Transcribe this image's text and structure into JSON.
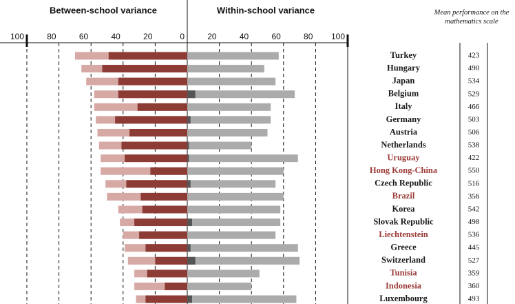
{
  "chart_data": {
    "type": "diverging-bar",
    "title_left": "Between-school variance",
    "title_right": "Within-school variance",
    "score_header": "Mean performance on the mathematics scale",
    "categories": [
      "Turkey",
      "Hungary",
      "Japan",
      "Belgium",
      "Italy",
      "Germany",
      "Austria",
      "Netherlands",
      "Uruguay",
      "Hong Kong-China",
      "Czech Republic",
      "Brazil",
      "Korea",
      "Slovak Republic",
      "Liechtenstein",
      "Greece",
      "Switzerland",
      "Tunisia",
      "Indonesia",
      "Luxembourg"
    ],
    "category_colors": [
      "#1a1a1a",
      "#1a1a1a",
      "#1a1a1a",
      "#1a1a1a",
      "#1a1a1a",
      "#1a1a1a",
      "#1a1a1a",
      "#1a1a1a",
      "#9b3b37",
      "#9b3b37",
      "#1a1a1a",
      "#9b3b37",
      "#1a1a1a",
      "#1a1a1a",
      "#9b3b37",
      "#1a1a1a",
      "#1a1a1a",
      "#9b3b37",
      "#9b3b37",
      "#1a1a1a"
    ],
    "scores": [
      423,
      490,
      534,
      529,
      466,
      503,
      506,
      538,
      422,
      550,
      516,
      356,
      542,
      498,
      536,
      445,
      527,
      359,
      360,
      493
    ],
    "series": [
      {
        "color": "#d6a9a5",
        "values": [
          -70,
          -66,
          -63,
          -58,
          -58,
          -57,
          -56,
          -55,
          -54,
          -54,
          -51,
          -50,
          -43,
          -42,
          -40,
          -39,
          -37,
          -33,
          -33,
          -32
        ]
      },
      {
        "color": "#8c3b35",
        "values": [
          -49,
          -53,
          -43,
          -43,
          -31,
          -45,
          -36,
          -41,
          -39,
          -23,
          -38,
          -29,
          -28,
          -33,
          -30,
          -26,
          -20,
          -25,
          -14,
          -26
        ]
      },
      {
        "color": "#ababab",
        "values": [
          57,
          48,
          55,
          67,
          52,
          52,
          50,
          40,
          69,
          60,
          55,
          60,
          58,
          58,
          55,
          69,
          70,
          45,
          40,
          68
        ]
      },
      {
        "color": "#555555",
        "values": [
          0,
          0,
          0,
          5,
          0,
          2,
          0,
          1,
          1,
          0,
          2,
          0,
          0,
          3,
          0,
          2,
          5,
          0,
          0,
          3
        ]
      }
    ],
    "xlim": [
      -100,
      100
    ],
    "xticks": [
      {
        "value": -100,
        "label": "100"
      },
      {
        "value": -80,
        "label": "80"
      },
      {
        "value": -60,
        "label": "60"
      },
      {
        "value": -40,
        "label": "40"
      },
      {
        "value": -20,
        "label": "20"
      },
      0,
      20,
      40,
      60,
      80,
      100
    ],
    "grid": true
  }
}
